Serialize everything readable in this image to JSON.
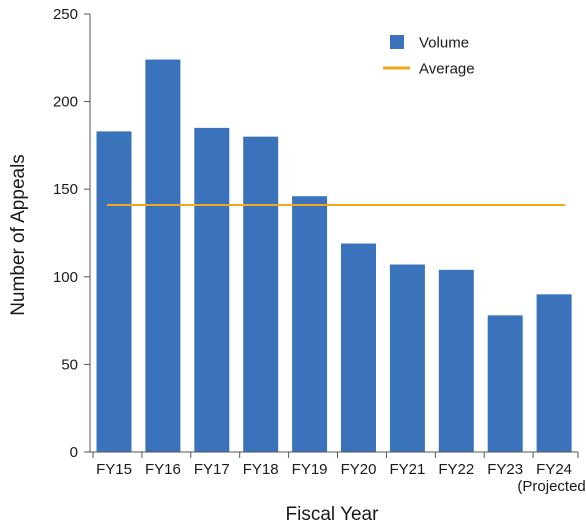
{
  "chart_data": {
    "type": "bar",
    "title": "",
    "xlabel": "Fiscal Year",
    "ylabel": "Number of Appeals",
    "categories": [
      "FY15",
      "FY16",
      "FY17",
      "FY18",
      "FY19",
      "FY20",
      "FY21",
      "FY22",
      "FY23",
      "FY24"
    ],
    "category_sublabels": [
      "",
      "",
      "",
      "",
      "",
      "",
      "",
      "",
      "",
      "(Projected)"
    ],
    "series": [
      {
        "name": "Volume",
        "type": "bar",
        "color": "#3a73bb",
        "values": [
          183,
          224,
          185,
          180,
          146,
          119,
          107,
          104,
          78,
          90
        ]
      },
      {
        "name": "Average",
        "type": "line",
        "color": "#f0a81e",
        "values": [
          141,
          141,
          141,
          141,
          141,
          141,
          141,
          141,
          141,
          141
        ]
      }
    ],
    "ylim": [
      0,
      250
    ],
    "yticks": [
      0,
      50,
      100,
      150,
      200,
      250
    ],
    "grid": false,
    "legend": {
      "position": "top-right",
      "entries": [
        "Volume",
        "Average"
      ]
    }
  }
}
